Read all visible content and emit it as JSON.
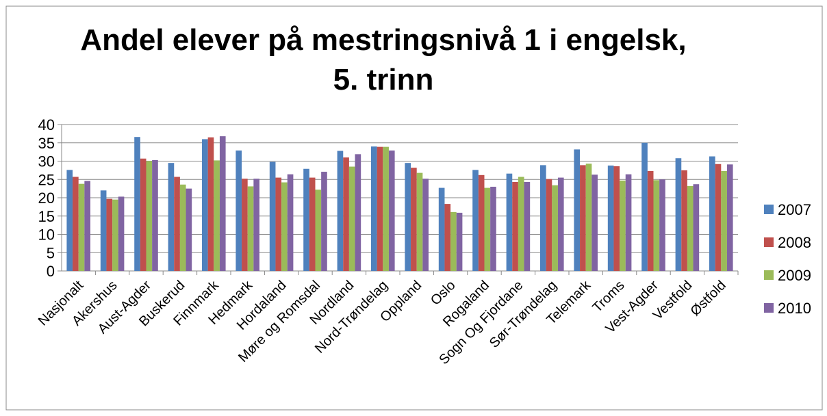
{
  "chart_data": {
    "type": "bar",
    "title": "Andel elever på mestringsnivå 1 i engelsk, 5. trinn",
    "categories": [
      "Nasjonalt",
      "Akershus",
      "Aust-Agder",
      "Buskerud",
      "Finnmark",
      "Hedmark",
      "Hordaland",
      "Møre og Romsdal",
      "Nordland",
      "Nord-Trøndelag",
      "Oppland",
      "Oslo",
      "Rogaland",
      "Sogn Og Fjordane",
      "Sør-Trøndelag",
      "Telemark",
      "Troms",
      "Vest-Agder",
      "Vestfold",
      "Østfold"
    ],
    "series": [
      {
        "name": "2007",
        "color": "#4f81bd",
        "values": [
          27.6,
          22,
          36.6,
          29.5,
          36,
          32.9,
          29.8,
          27.9,
          32.8,
          34,
          29.5,
          22.7,
          27.6,
          26.6,
          28.9,
          33.2,
          28.8,
          35,
          30.8,
          31.3
        ]
      },
      {
        "name": "2008",
        "color": "#c0504d",
        "values": [
          25.7,
          19.7,
          30.7,
          25.7,
          36.5,
          25.2,
          25.5,
          25.5,
          31,
          33.9,
          28.2,
          18.3,
          26.2,
          24.3,
          25.1,
          28.9,
          28.6,
          27.3,
          27.5,
          29.2
        ]
      },
      {
        "name": "2009",
        "color": "#9bbb59",
        "values": [
          23.8,
          19.5,
          30,
          23.6,
          30.2,
          23.1,
          24.2,
          22.2,
          28.5,
          33.9,
          26.8,
          16.1,
          22.7,
          25.7,
          23.4,
          29.3,
          24.7,
          24.8,
          23.2,
          27.3
        ]
      },
      {
        "name": "2010",
        "color": "#8064a2",
        "values": [
          24.6,
          20.3,
          30.3,
          22.5,
          36.8,
          25.2,
          26.4,
          27.1,
          31.9,
          32.9,
          25.2,
          15.9,
          23,
          24.3,
          25.5,
          26.3,
          26.4,
          25,
          23.7,
          29.1
        ]
      }
    ],
    "ylim": [
      0,
      40
    ],
    "yticks": [
      0,
      5,
      10,
      15,
      20,
      25,
      30,
      35,
      40
    ],
    "grid": true,
    "legend": "right"
  }
}
